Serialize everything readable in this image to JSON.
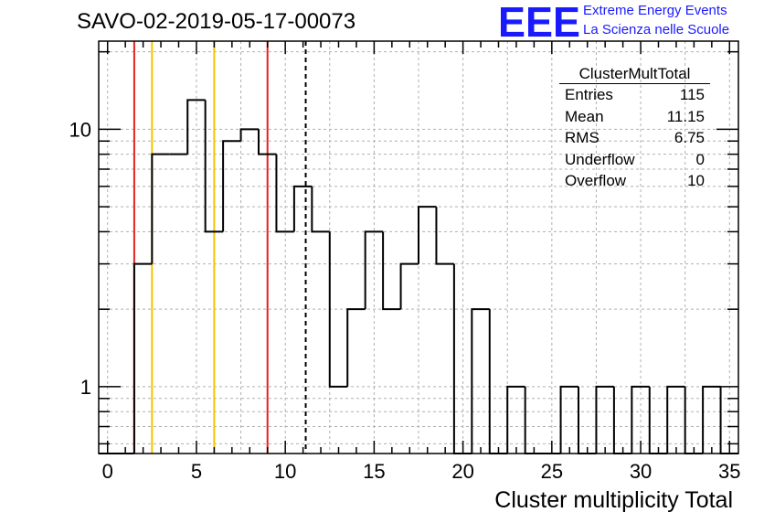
{
  "header": {
    "run_title": "SAVO-02-2019-05-17-00073",
    "logo_text": "EEE",
    "logo_line1": "Extreme Energy Events",
    "logo_line2": "La Scienza nelle Scuole"
  },
  "stats_box": {
    "title": "ClusterMultTotal",
    "rows": [
      {
        "label": "Entries",
        "value": "115"
      },
      {
        "label": "Mean",
        "value": "11.15"
      },
      {
        "label": "RMS",
        "value": "6.75"
      },
      {
        "label": "Underflow",
        "value": "0"
      },
      {
        "label": "Overflow",
        "value": "10"
      }
    ]
  },
  "chart_data": {
    "type": "bar",
    "histogram": true,
    "title": "SAVO-02-2019-05-17-00073",
    "xlabel": "Cluster multiplicity Total",
    "ylabel": "",
    "xlim": [
      -0.5,
      35.5
    ],
    "ylim": [
      0.55,
      22
    ],
    "yscale": "log",
    "grid": true,
    "bin_width": 1,
    "x": [
      0,
      1,
      2,
      3,
      4,
      5,
      6,
      7,
      8,
      9,
      10,
      11,
      12,
      13,
      14,
      15,
      16,
      17,
      18,
      19,
      20,
      21,
      22,
      23,
      24,
      25,
      26,
      27,
      28,
      29,
      30,
      31,
      32,
      33,
      34,
      35
    ],
    "values": [
      0,
      0,
      3,
      8,
      8,
      13,
      4,
      9,
      10,
      8,
      4,
      6,
      4,
      1,
      2,
      4,
      2,
      3,
      5,
      3,
      0,
      2,
      0,
      1,
      0,
      0,
      1,
      0,
      1,
      0,
      1,
      0,
      1,
      0,
      1,
      0
    ],
    "xticks": [
      "0",
      "5",
      "10",
      "15",
      "20",
      "25",
      "30",
      "35"
    ],
    "yticks": [
      "1",
      "10"
    ],
    "vertical_lines": [
      {
        "x": 1.5,
        "color": "#e8201f",
        "style": "solid"
      },
      {
        "x": 2.5,
        "color": "#f5c400",
        "style": "solid"
      },
      {
        "x": 6.0,
        "color": "#f5c400",
        "style": "solid"
      },
      {
        "x": 9.0,
        "color": "#e8201f",
        "style": "solid"
      },
      {
        "x": 11.15,
        "color": "#000000",
        "style": "dashed"
      }
    ]
  }
}
